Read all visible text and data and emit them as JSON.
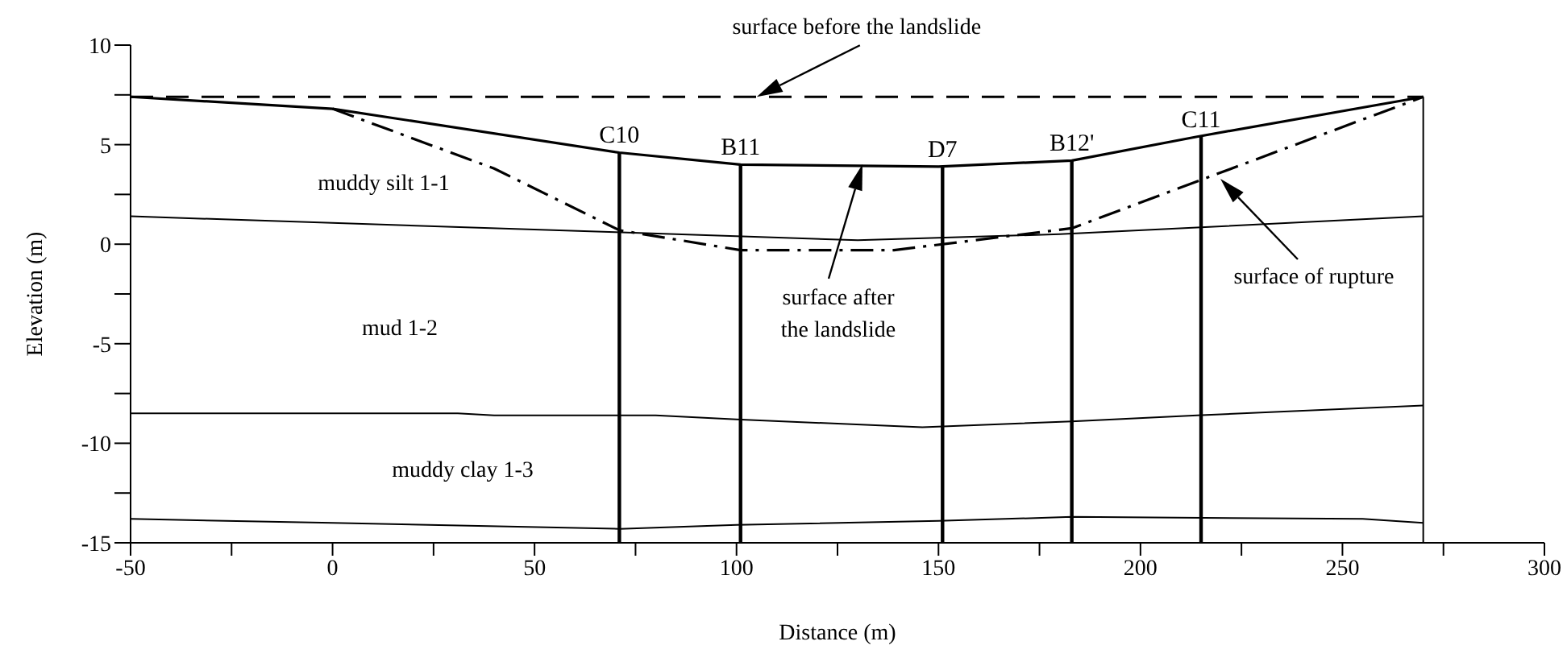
{
  "chart_data": {
    "type": "line",
    "xlabel": "Distance (m)",
    "ylabel": "Elevation (m)",
    "xlim": [
      -50,
      300
    ],
    "xticks": [
      -50,
      {
        "value": -25,
        "label": null
      },
      0,
      {
        "value": 25,
        "label": null
      },
      50,
      {
        "value": 75,
        "label": null
      },
      100,
      {
        "value": 125,
        "label": null
      },
      150,
      {
        "value": 175,
        "label": null
      },
      200,
      {
        "value": 225,
        "label": null
      },
      250,
      {
        "value": 275,
        "label": null
      },
      300
    ],
    "ylim": [
      -15,
      10
    ],
    "yticks": [
      -15,
      {
        "value": -12.5,
        "label": null
      },
      -10,
      {
        "value": -7.5,
        "label": null
      },
      -5,
      {
        "value": -2.5,
        "label": null
      },
      0,
      {
        "value": 2.5,
        "label": null
      },
      5,
      {
        "value": 7.5,
        "label": null
      },
      10
    ],
    "marker": "none",
    "series": [
      {
        "color": "#000000",
        "line_style": "dashed",
        "x": [
          -50,
          270
        ],
        "values": [
          7.4,
          7.4
        ]
      },
      {
        "color": "#000000",
        "line_style": "solid",
        "x": [
          -50,
          0,
          71,
          101,
          150,
          183,
          214,
          270
        ],
        "values": [
          7.4,
          6.8,
          4.6,
          4.0,
          3.9,
          4.2,
          5.4,
          7.4
        ]
      },
      {
        "color": "#000000",
        "line_style": "dashdot",
        "x": [
          0,
          40,
          71,
          101,
          139,
          183,
          270
        ],
        "values": [
          6.8,
          3.8,
          0.7,
          -0.3,
          -0.3,
          0.8,
          7.4
        ]
      },
      {
        "color": "#000000",
        "line_style": "solid",
        "x": [
          -50,
          70,
          130,
          180,
          270
        ],
        "values": [
          1.4,
          0.6,
          0.2,
          0.5,
          1.4
        ]
      },
      {
        "color": "#000000",
        "line_style": "solid",
        "x": [
          -50,
          31,
          40,
          80,
          100,
          146,
          183,
          214,
          270
        ],
        "values": [
          -8.5,
          -8.5,
          -8.6,
          -8.6,
          -8.8,
          -9.2,
          -8.9,
          -8.6,
          -8.1
        ]
      },
      {
        "color": "#000000",
        "line_style": "solid",
        "x": [
          -50,
          0,
          71,
          100,
          150,
          183,
          255,
          270
        ],
        "values": [
          -13.8,
          -14.0,
          -14.3,
          -14.1,
          -13.9,
          -13.7,
          -13.8,
          -14.0
        ]
      },
      {
        "color": "#000000",
        "line_style": "solid",
        "x": [
          270,
          270
        ],
        "values": [
          7.4,
          -15
        ]
      },
      {
        "name": "C10",
        "color": "#000000",
        "line_style": "solid",
        "x": [
          71,
          71
        ],
        "values": [
          4.6,
          -15
        ]
      },
      {
        "name": "B11",
        "color": "#000000",
        "line_style": "solid",
        "x": [
          101,
          101
        ],
        "values": [
          4.0,
          -15
        ]
      },
      {
        "name": "D7",
        "color": "#000000",
        "line_style": "solid",
        "x": [
          151,
          151
        ],
        "values": [
          3.9,
          -15
        ]
      },
      {
        "name": "B12'",
        "color": "#000000",
        "line_style": "solid",
        "x": [
          183,
          183
        ],
        "values": [
          4.2,
          -15
        ]
      },
      {
        "name": "C11",
        "color": "#000000",
        "line_style": "solid",
        "x": [
          215,
          215
        ],
        "values": [
          5.4,
          -15
        ]
      }
    ],
    "annotations": [
      {
        "text": "surface before the landslide",
        "x": 105,
        "y": 7.4
      },
      "surface after\nthe landslide",
      "surface of rupture",
      "muddy silt 1-1",
      "mud 1-2",
      "muddy clay 1-3"
    ]
  }
}
